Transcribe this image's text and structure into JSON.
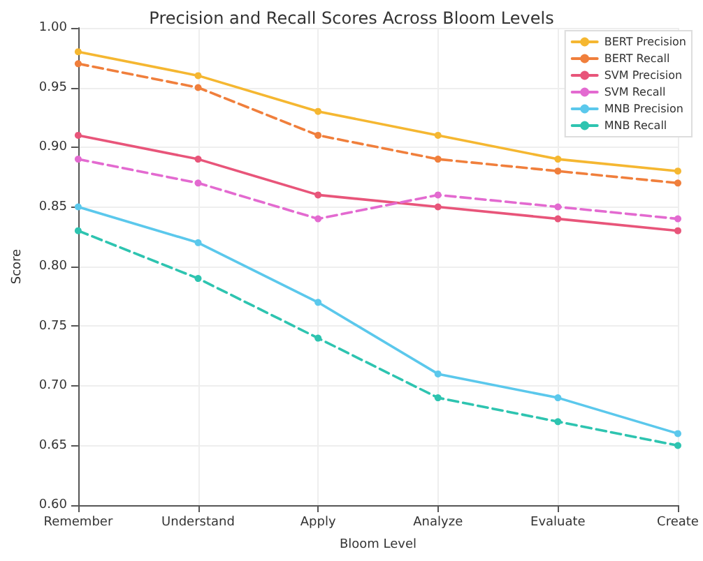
{
  "chart_data": {
    "type": "line",
    "title": "Precision and Recall Scores Across Bloom Levels",
    "xlabel": "Bloom Level",
    "ylabel": "Score",
    "categories": [
      "Remember",
      "Understand",
      "Apply",
      "Analyze",
      "Evaluate",
      "Create"
    ],
    "ylim": [
      0.6,
      1.0
    ],
    "yticks": [
      {
        "value": 0.6,
        "label": "0.60"
      },
      {
        "value": 0.65,
        "label": "0.65"
      },
      {
        "value": 0.7,
        "label": "0.70"
      },
      {
        "value": 0.75,
        "label": "0.75"
      },
      {
        "value": 0.8,
        "label": "0.80"
      },
      {
        "value": 0.85,
        "label": "0.85"
      },
      {
        "value": 0.9,
        "label": "0.90"
      },
      {
        "value": 0.95,
        "label": "0.95"
      },
      {
        "value": 1.0,
        "label": "1.00"
      }
    ],
    "grid": true,
    "legend": "top right",
    "marker": "circle",
    "series": [
      {
        "name": "BERT Precision",
        "color": "#f5b731",
        "line_style": "solid",
        "values": [
          0.98,
          0.96,
          0.93,
          0.91,
          0.89,
          0.88
        ]
      },
      {
        "name": "BERT Recall",
        "color": "#f07f3c",
        "line_style": "dashed",
        "values": [
          0.97,
          0.95,
          0.91,
          0.89,
          0.88,
          0.87
        ]
      },
      {
        "name": "SVM Precision",
        "color": "#e8557a",
        "line_style": "solid",
        "values": [
          0.91,
          0.89,
          0.86,
          0.85,
          0.84,
          0.83
        ]
      },
      {
        "name": "SVM Recall",
        "color": "#e36ad0",
        "line_style": "dashed",
        "values": [
          0.89,
          0.87,
          0.84,
          0.86,
          0.85,
          0.84
        ]
      },
      {
        "name": "MNB Precision",
        "color": "#5bc8ec",
        "line_style": "solid",
        "values": [
          0.85,
          0.82,
          0.77,
          0.71,
          0.69,
          0.66
        ]
      },
      {
        "name": "MNB Recall",
        "color": "#2ec4b0",
        "line_style": "dashed",
        "values": [
          0.83,
          0.79,
          0.74,
          0.69,
          0.67,
          0.65
        ]
      }
    ]
  }
}
